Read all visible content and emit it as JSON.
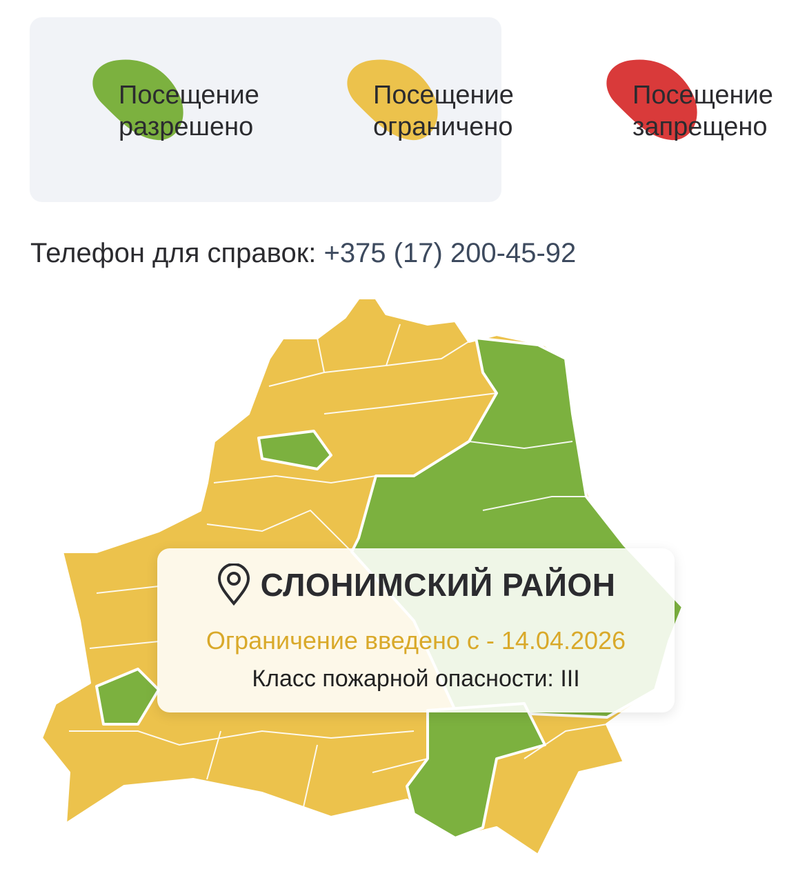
{
  "legend": {
    "items": [
      {
        "label_line1": "Посещение",
        "label_line2": "разрешено",
        "color": "#7cb13f"
      },
      {
        "label_line1": "Посещение",
        "label_line2": "ограничено",
        "color": "#ecc24c"
      },
      {
        "label_line1": "Посещение",
        "label_line2": "запрещено",
        "color": "#d93a3a"
      }
    ]
  },
  "contact": {
    "label": "Телефон для справок:",
    "phone": "+375 (17) 200-45-92"
  },
  "map": {
    "colors": {
      "allowed": "#7cb13f",
      "restricted": "#ecc24c",
      "border": "#ffffff"
    }
  },
  "district_card": {
    "icon": "map-pin-icon",
    "title": "СЛОНИМСКИЙ РАЙОН",
    "restriction_text": "Ограничение введено с - 14.04.2026",
    "fire_class_text": "Класс пожарной опасности: III",
    "accent_color": "#d9a92a"
  }
}
